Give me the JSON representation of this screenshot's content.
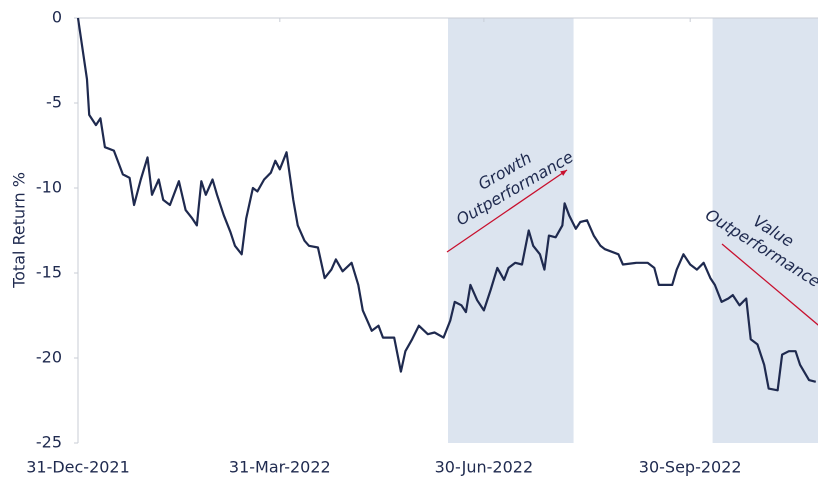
{
  "chart_data": {
    "type": "line",
    "y_label": "Total Return %",
    "xlim": [
      "2021-12-31",
      "2022-11-26"
    ],
    "xticks": [
      {
        "value": "2021-12-31",
        "label": "31-Dec-2021"
      },
      {
        "value": "2022-03-31",
        "label": "31-Mar-2022"
      },
      {
        "value": "2022-06-30",
        "label": "30-Jun-2022"
      },
      {
        "value": "2022-09-30",
        "label": "30-Sep-2022"
      }
    ],
    "ylim": [
      -25,
      0
    ],
    "yticks": [
      0,
      -5,
      -10,
      -15,
      -20,
      -25
    ],
    "annotations": [
      {
        "lines": [
          "Growth",
          "Outperformance"
        ],
        "start": "2022-06-14",
        "end": "2022-08-09",
        "shade": "#dce4ef",
        "arrow_color": "#c8102e"
      },
      {
        "lines": [
          "Value",
          "Outperformance"
        ],
        "start": "2022-10-10",
        "end": "2022-11-26",
        "shade": "#dce4ef",
        "arrow_color": "#c8102e"
      }
    ],
    "x": [
      "2021-12-31",
      "2022-01-04",
      "2022-01-05",
      "2022-01-08",
      "2022-01-10",
      "2022-01-12",
      "2022-01-16",
      "2022-01-20",
      "2022-01-23",
      "2022-01-25",
      "2022-01-28",
      "2022-01-31",
      "2022-02-02",
      "2022-02-05",
      "2022-02-07",
      "2022-02-10",
      "2022-02-14",
      "2022-02-17",
      "2022-02-20",
      "2022-02-22",
      "2022-02-24",
      "2022-02-26",
      "2022-03-01",
      "2022-03-03",
      "2022-03-06",
      "2022-03-09",
      "2022-03-11",
      "2022-03-14",
      "2022-03-16",
      "2022-03-19",
      "2022-03-21",
      "2022-03-24",
      "2022-03-27",
      "2022-03-29",
      "2022-03-31",
      "2022-04-03",
      "2022-04-06",
      "2022-04-08",
      "2022-04-11",
      "2022-04-13",
      "2022-04-17",
      "2022-04-20",
      "2022-04-23",
      "2022-04-25",
      "2022-04-28",
      "2022-05-02",
      "2022-05-05",
      "2022-05-07",
      "2022-05-09",
      "2022-05-11",
      "2022-05-14",
      "2022-05-16",
      "2022-05-21",
      "2022-05-24",
      "2022-05-26",
      "2022-05-29",
      "2022-06-01",
      "2022-06-05",
      "2022-06-08",
      "2022-06-12",
      "2022-06-15",
      "2022-06-17",
      "2022-06-20",
      "2022-06-22",
      "2022-06-24",
      "2022-06-27",
      "2022-06-30",
      "2022-07-03",
      "2022-07-06",
      "2022-07-09",
      "2022-07-11",
      "2022-07-14",
      "2022-07-17",
      "2022-07-20",
      "2022-07-22",
      "2022-07-25",
      "2022-07-27",
      "2022-07-29",
      "2022-08-01",
      "2022-08-04",
      "2022-08-05",
      "2022-08-07",
      "2022-08-10",
      "2022-08-12",
      "2022-08-15",
      "2022-08-18",
      "2022-08-21",
      "2022-08-23",
      "2022-08-29",
      "2022-08-31",
      "2022-09-06",
      "2022-09-11",
      "2022-09-14",
      "2022-09-16",
      "2022-09-22",
      "2022-09-24",
      "2022-09-27",
      "2022-09-30",
      "2022-10-03",
      "2022-10-06",
      "2022-10-09",
      "2022-10-11",
      "2022-10-14",
      "2022-10-17",
      "2022-10-19",
      "2022-10-22",
      "2022-10-25",
      "2022-10-27",
      "2022-10-30",
      "2022-11-02",
      "2022-11-04",
      "2022-11-08",
      "2022-11-10",
      "2022-11-13",
      "2022-11-16",
      "2022-11-18",
      "2022-11-22",
      "2022-11-25"
    ],
    "series": [
      {
        "name": "Total Return",
        "color": "#1f2a4f",
        "values": [
          0,
          -3.6,
          -5.7,
          -6.3,
          -5.9,
          -7.6,
          -7.8,
          -9.2,
          -9.4,
          -11.0,
          -9.5,
          -8.2,
          -10.4,
          -9.5,
          -10.7,
          -11.0,
          -9.6,
          -11.3,
          -11.8,
          -12.2,
          -9.6,
          -10.4,
          -9.5,
          -10.4,
          -11.6,
          -12.6,
          -13.4,
          -13.9,
          -11.8,
          -10.0,
          -10.2,
          -9.5,
          -9.1,
          -8.4,
          -8.9,
          -7.9,
          -10.7,
          -12.2,
          -13.1,
          -13.4,
          -13.5,
          -15.3,
          -14.8,
          -14.2,
          -14.9,
          -14.4,
          -15.7,
          -17.2,
          -17.8,
          -18.4,
          -18.1,
          -18.8,
          -18.8,
          -20.8,
          -19.6,
          -18.9,
          -18.1,
          -18.6,
          -18.5,
          -18.8,
          -17.8,
          -16.7,
          -16.9,
          -17.3,
          -15.7,
          -16.6,
          -17.2,
          -16.0,
          -14.7,
          -15.4,
          -14.7,
          -14.4,
          -14.5,
          -12.5,
          -13.4,
          -13.9,
          -14.8,
          -12.8,
          -12.9,
          -12.2,
          -10.9,
          -11.6,
          -12.4,
          -12.0,
          -11.9,
          -12.8,
          -13.4,
          -13.6,
          -13.9,
          -14.5,
          -14.4,
          -14.4,
          -14.7,
          -15.7,
          -15.7,
          -14.8,
          -13.9,
          -14.5,
          -14.8,
          -14.4,
          -15.3,
          -15.7,
          -16.7,
          -16.5,
          -16.3,
          -16.9,
          -16.5,
          -18.9,
          -19.2,
          -20.4,
          -21.8,
          -21.9,
          -19.8,
          -19.6,
          -19.6,
          -20.4,
          -21.3,
          -21.4
        ]
      }
    ]
  }
}
